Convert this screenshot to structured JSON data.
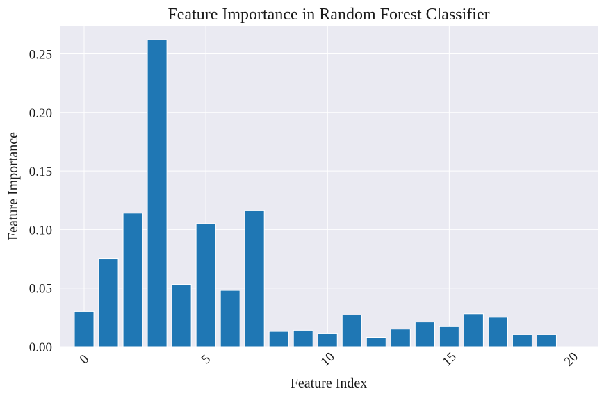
{
  "chart_data": {
    "type": "bar",
    "title": "Feature Importance in Random Forest Classifier",
    "xlabel": "Feature Index",
    "ylabel": "Feature Importance",
    "categories": [
      0,
      1,
      2,
      3,
      4,
      5,
      6,
      7,
      8,
      9,
      10,
      11,
      12,
      13,
      14,
      15,
      16,
      17,
      18,
      19
    ],
    "values": [
      0.03,
      0.075,
      0.114,
      0.262,
      0.053,
      0.105,
      0.048,
      0.116,
      0.013,
      0.014,
      0.011,
      0.027,
      0.008,
      0.015,
      0.021,
      0.017,
      0.028,
      0.025,
      0.01,
      0.01
    ],
    "xlim": [
      -1.0,
      21.1
    ],
    "ylim": [
      0,
      0.274
    ],
    "xticks": [
      0,
      5,
      10,
      15,
      20
    ],
    "xtick_labels": [
      "0",
      "5",
      "10",
      "15",
      "20"
    ],
    "yticks": [
      0.0,
      0.05,
      0.1,
      0.15,
      0.2,
      0.25
    ],
    "ytick_labels": [
      "0.00",
      "0.05",
      "0.10",
      "0.15",
      "0.20",
      "0.25"
    ],
    "grid": true,
    "colors": {
      "bar": "#1f77b4",
      "background": "#eaeaf2",
      "grid": "#ffffff"
    }
  }
}
